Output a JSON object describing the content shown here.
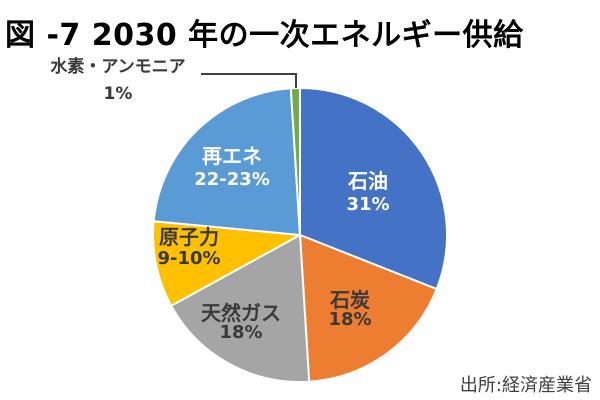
{
  "chart_data": {
    "type": "pie",
    "title": "図 -7 2030 年の一次エネルギー供給",
    "source": "出所:経済産業省",
    "start_angle_deg": 0,
    "direction": "clockwise",
    "legend": "none (labels inside slices, one callout label)",
    "slices": [
      {
        "id": "oil",
        "name": "石油",
        "pct_label": "31%",
        "value": 31,
        "color": "#4472C4",
        "label_color": "#FFFFFF",
        "label_position": "inside"
      },
      {
        "id": "coal",
        "name": "石炭",
        "pct_label": "18%",
        "value": 18,
        "color": "#ED7D31",
        "label_color": "#3A3A3A",
        "label_position": "inside"
      },
      {
        "id": "natural-gas",
        "name": "天然ガス",
        "pct_label": "18%",
        "value": 18,
        "color": "#A5A5A5",
        "label_color": "#3A3A3A",
        "label_position": "inside"
      },
      {
        "id": "nuclear",
        "name": "原子力",
        "pct_label": "9-10%",
        "value": 9.5,
        "color": "#FFC000",
        "label_color": "#3A3A3A",
        "label_position": "inside"
      },
      {
        "id": "renewables",
        "name": "再エネ",
        "pct_label": "22-23%",
        "value": 22.5,
        "color": "#5B9BD5",
        "label_color": "#FFFFFF",
        "label_position": "inside"
      },
      {
        "id": "hydrogen-ammonia",
        "name": "水素・アンモニア",
        "pct_label": "1%",
        "value": 1,
        "color": "#70AD47",
        "label_color": "#3A3A3A",
        "label_position": "callout-outside"
      }
    ]
  }
}
